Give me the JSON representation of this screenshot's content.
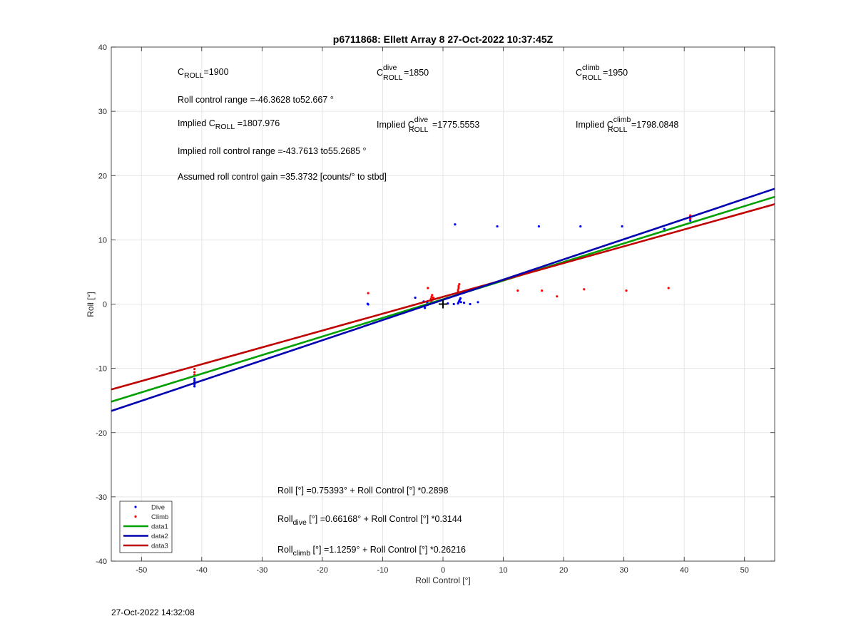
{
  "footer": {
    "timestamp": "27-Oct-2022 14:32:08"
  },
  "chart_data": {
    "type": "scatter",
    "title": "p6711868: Ellett Array 8 27-Oct-2022 10:37:45Z",
    "xlabel": "Roll Control [°]",
    "ylabel": "Roll [°]",
    "xlim": [
      -55,
      55
    ],
    "ylim": [
      -40,
      40
    ],
    "xticks": [
      -50,
      -40,
      -30,
      -20,
      -10,
      0,
      10,
      20,
      30,
      40,
      50
    ],
    "yticks": [
      -40,
      -30,
      -20,
      -10,
      0,
      10,
      20,
      30,
      40
    ],
    "grid": true,
    "legend_position": "bottom-left",
    "colors": {
      "dive": "#0000FF",
      "climb": "#FF0000",
      "data1": "#00A000",
      "data2": "#0000B0",
      "data3": "#C00000"
    },
    "series": [
      {
        "name": "Dive",
        "kind": "points",
        "x": [
          -41.2,
          -41.2,
          -41.2,
          -41.2,
          -41.2,
          -12.5,
          -12.4,
          -4.6,
          -3.2,
          -3.0,
          -2.6,
          -1.8,
          0.8,
          1.8,
          2.5,
          2.6,
          2.7,
          2.8,
          2.9,
          3.0,
          3.5,
          4.5,
          5.8,
          2.0,
          9.0,
          15.9,
          22.8,
          29.7,
          36.7,
          41.0,
          41.0,
          41.0
        ],
        "y": [
          -11.6,
          -11.9,
          -12.2,
          -12.5,
          -12.8,
          0.05,
          -0.05,
          1.0,
          0.4,
          -0.6,
          0.2,
          0.3,
          0.1,
          0.0,
          0.1,
          0.3,
          0.5,
          0.7,
          0.9,
          0.3,
          0.2,
          0.0,
          0.3,
          12.4,
          12.1,
          12.1,
          12.1,
          12.1,
          11.7,
          13.0,
          13.3,
          13.6
        ]
      },
      {
        "name": "Climb",
        "kind": "points",
        "x": [
          -41.2,
          -41.2,
          -41.2,
          -12.4,
          -2.5,
          -2.0,
          -2.0,
          -1.9,
          -1.8,
          -1.7,
          -1.6,
          2.4,
          2.5,
          2.5,
          2.6,
          2.6,
          2.7,
          12.4,
          16.4,
          18.9,
          23.4,
          30.4,
          37.4,
          41.0,
          41.0
        ],
        "y": [
          -10.1,
          -10.6,
          -11.0,
          1.7,
          2.5,
          0.5,
          0.8,
          1.1,
          1.4,
          0.7,
          1.0,
          1.6,
          1.9,
          2.2,
          2.5,
          2.8,
          3.1,
          2.1,
          2.1,
          1.2,
          2.3,
          2.1,
          2.5,
          13.3,
          13.8
        ]
      },
      {
        "name": "data1",
        "kind": "line",
        "intercept": 0.75393,
        "slope": 0.2898
      },
      {
        "name": "data2",
        "kind": "line",
        "intercept": 0.66168,
        "slope": 0.3144
      },
      {
        "name": "data3",
        "kind": "line",
        "intercept": 1.1259,
        "slope": 0.26216
      }
    ],
    "origin_marker": {
      "x": 0,
      "y": 0,
      "symbol": "+"
    },
    "annotations": {
      "c_roll": {
        "prefix": "C",
        "sub": "ROLL",
        "sup": "",
        "suffix": "=1900"
      },
      "c_roll_dive": {
        "prefix": "C",
        "sub": "ROLL",
        "sup": "dive",
        "suffix": " =1850"
      },
      "c_roll_climb": {
        "prefix": "C",
        "sub": "ROLL",
        "sup": "climb",
        "suffix": " =1950"
      },
      "roll_range": "Roll control range =-46.3628 to52.667 °",
      "implied_c_roll": {
        "prefix": "Implied C",
        "sub": "ROLL",
        "sup": "",
        "suffix": " =1807.976"
      },
      "implied_c_roll_dive": {
        "prefix": "Implied C",
        "sub": "ROLL",
        "sup": "dive",
        "suffix": " =1775.5553"
      },
      "implied_c_roll_climb": {
        "prefix": "Implied C",
        "sub": "ROLL",
        "sup": "climb",
        "suffix": " =1798.0848"
      },
      "implied_range": "Implied roll control range =-43.7613 to55.2685 °",
      "assumed_gain": "Assumed roll control gain =35.3732 [counts/° to stbd]",
      "fit_all": {
        "prefix": "Roll",
        "sub": "",
        "suffix": " [°] =0.75393° + Roll Control [°] *0.2898"
      },
      "fit_dive": {
        "prefix": "Roll",
        "sub": "dive",
        "suffix": " [°] =0.66168° + Roll Control [°] *0.3144"
      },
      "fit_climb": {
        "prefix": "Roll",
        "sub": "climb",
        "suffix": " [°] =1.1259° + Roll Control [°] *0.26216"
      }
    }
  }
}
